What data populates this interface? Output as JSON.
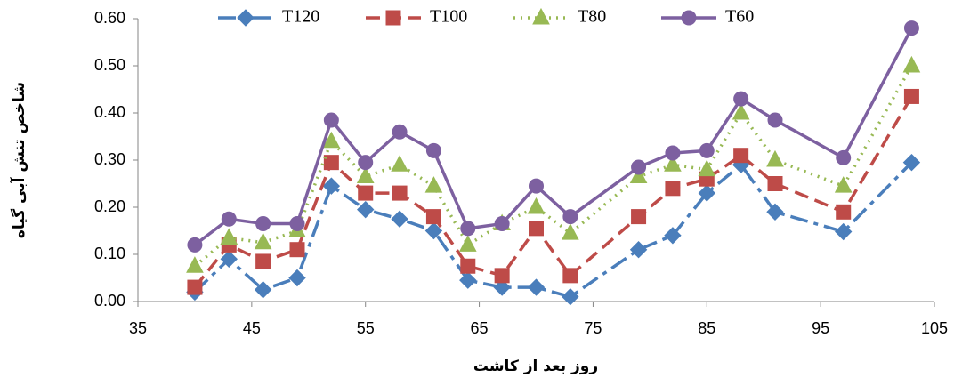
{
  "chart_data": {
    "type": "line",
    "x_label": "روز بعد از کاشت",
    "y_label": "شاخص تنش آبی گیاه",
    "x": [
      40,
      43,
      46,
      49,
      52,
      55,
      58,
      61,
      64,
      67,
      70,
      73,
      79,
      82,
      85,
      88,
      91,
      97,
      103
    ],
    "series": [
      {
        "name": "T120",
        "color": "#4a7ebb",
        "line_style": "dashdot",
        "marker": "diamond",
        "values": [
          0.02,
          0.09,
          0.025,
          0.05,
          0.245,
          0.195,
          0.175,
          0.15,
          0.045,
          0.03,
          0.03,
          0.01,
          0.11,
          0.14,
          0.23,
          0.29,
          0.19,
          0.148,
          0.295
        ]
      },
      {
        "name": "T100",
        "color": "#be4b48",
        "line_style": "dashed",
        "marker": "square",
        "values": [
          0.03,
          0.12,
          0.085,
          0.11,
          0.295,
          0.23,
          0.23,
          0.18,
          0.075,
          0.055,
          0.155,
          0.055,
          0.18,
          0.24,
          0.26,
          0.31,
          0.25,
          0.19,
          0.435
        ]
      },
      {
        "name": "T80",
        "color": "#98b954",
        "line_style": "dotted",
        "marker": "triangle",
        "values": [
          0.075,
          0.135,
          0.125,
          0.15,
          0.34,
          0.265,
          0.29,
          0.245,
          0.12,
          0.165,
          0.2,
          0.145,
          0.265,
          0.29,
          0.28,
          0.4,
          0.3,
          0.245,
          0.5
        ]
      },
      {
        "name": "T60",
        "color": "#7d60a0",
        "line_style": "solid",
        "marker": "circle",
        "values": [
          0.12,
          0.175,
          0.165,
          0.165,
          0.385,
          0.295,
          0.36,
          0.32,
          0.155,
          0.165,
          0.245,
          0.18,
          0.285,
          0.315,
          0.32,
          0.43,
          0.385,
          0.305,
          0.58
        ]
      }
    ],
    "xlim": [
      35,
      105
    ],
    "xticks": [
      35,
      45,
      55,
      65,
      75,
      85,
      95,
      105
    ],
    "ylim": [
      0,
      0.6
    ],
    "yticks": [
      {
        "value": 0,
        "label": "0.00"
      },
      {
        "value": 0.1,
        "label": "0.10"
      },
      {
        "value": 0.2,
        "label": "0.20"
      },
      {
        "value": 0.3,
        "label": "0.30"
      },
      {
        "value": 0.4,
        "label": "0.40"
      },
      {
        "value": 0.5,
        "label": "0.50"
      },
      {
        "value": 0.6,
        "label": "0.60"
      }
    ],
    "grid": false,
    "legend": "top"
  }
}
